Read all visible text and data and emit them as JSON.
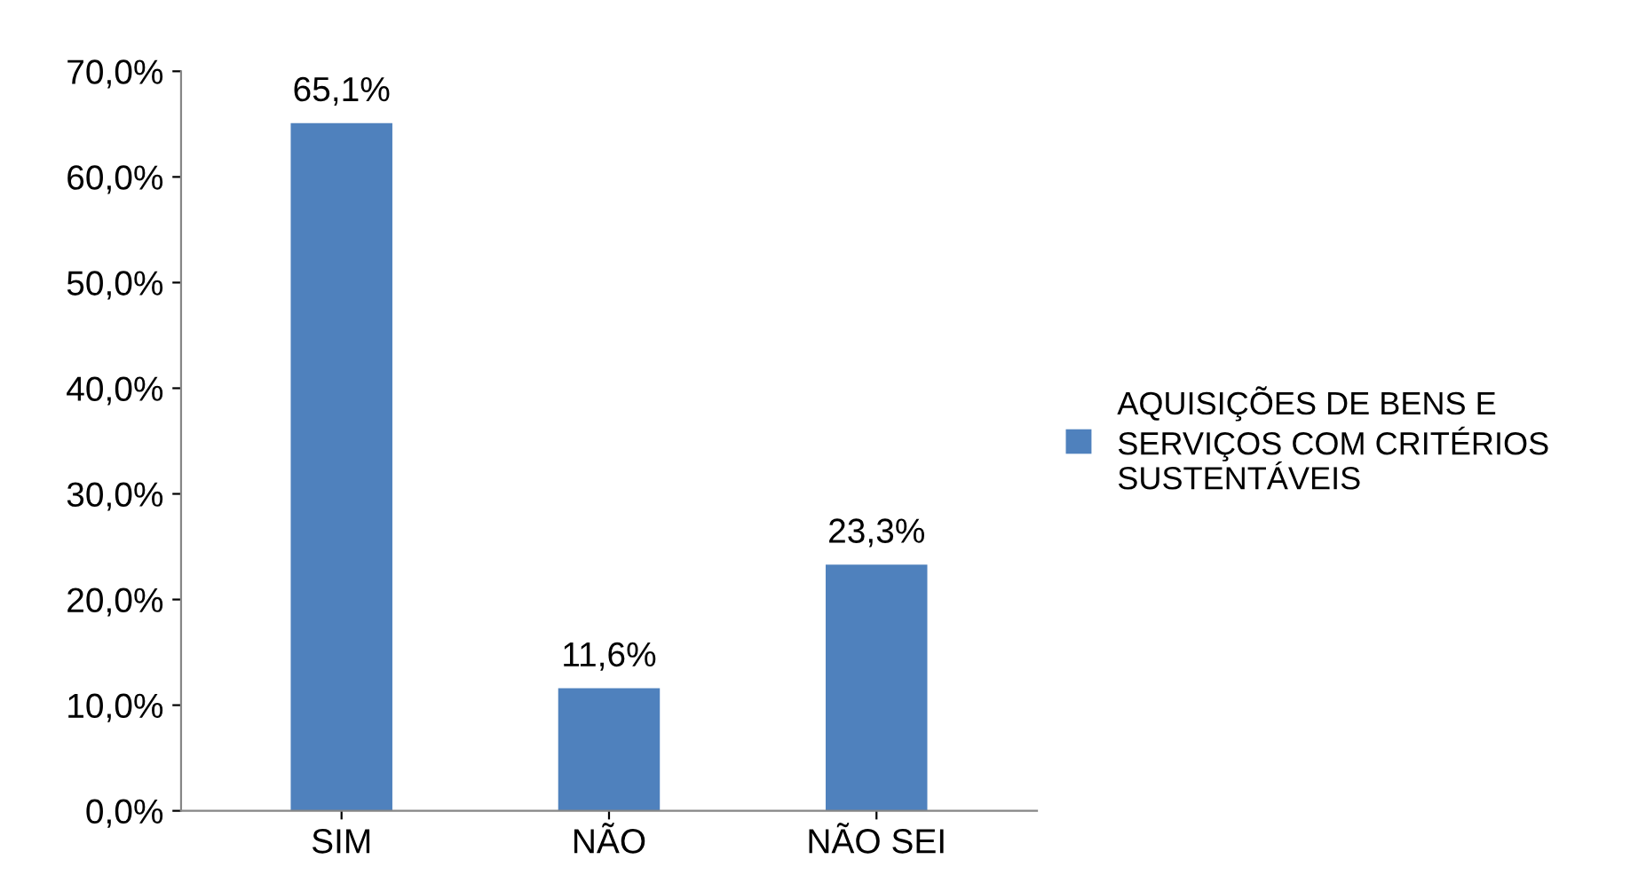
{
  "chart_data": {
    "type": "bar",
    "categories": [
      "SIM",
      "NÃO",
      "NÃO SEI"
    ],
    "series": [
      {
        "name": "AQUISIÇÕES DE BENS E SERVIÇOS COM CRITÉRIOS SUSTENTÁVEIS",
        "color": "#4f81bd",
        "values": [
          65.1,
          11.6,
          23.3
        ],
        "value_labels": [
          "65,1%",
          "11,6%",
          "23,3%"
        ]
      }
    ],
    "ylim": [
      0,
      70
    ],
    "yticks": [
      {
        "value": 0,
        "label": "0,0%"
      },
      {
        "value": 10,
        "label": "10,0%"
      },
      {
        "value": 20,
        "label": "20,0%"
      },
      {
        "value": 30,
        "label": "30,0%"
      },
      {
        "value": 40,
        "label": "40,0%"
      },
      {
        "value": 50,
        "label": "50,0%"
      },
      {
        "value": 60,
        "label": "60,0%"
      },
      {
        "value": 70,
        "label": "70,0%"
      }
    ],
    "grid": false,
    "legend": "right"
  }
}
